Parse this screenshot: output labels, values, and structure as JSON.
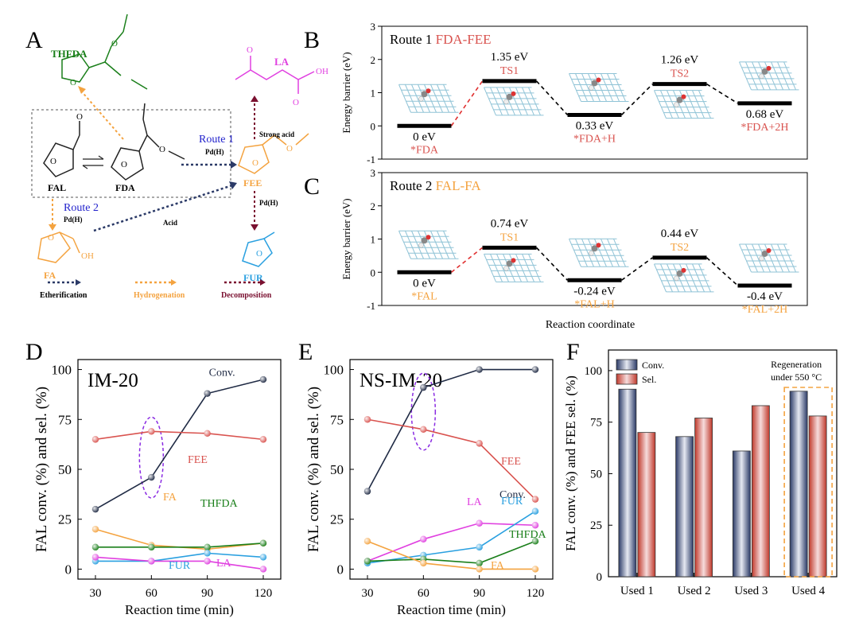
{
  "colors": {
    "dark": "#1f2a44",
    "red": "#d9534f",
    "orange": "#f4a340",
    "green": "#1a7f1a",
    "blue": "#2aa0e0",
    "magenta": "#e040e0",
    "navy": "#2b3a67",
    "maroon": "#7a1030",
    "surface": "#8fc3d6",
    "purple": "#8a2be2"
  },
  "panel_a": {
    "letter": "A",
    "labels": {
      "thfda": "THFDA",
      "la": "LA",
      "fal": "FAL",
      "fda": "FDA",
      "fee": "FEE",
      "fa": "FA",
      "fur": "FUR",
      "route1": "Route 1",
      "route2": "Route 2",
      "pd_h": "Pd(H)",
      "strong_acid": "Strong acid",
      "acid": "Acid",
      "carbonyl_o": "O",
      "ring_o": "O",
      "ether_o": "O",
      "oh": "OH",
      "acid_oh": "OH"
    },
    "legend": [
      "Etherification",
      "Hydrogenation",
      "Decomposition"
    ]
  },
  "shared": {
    "xlabel_bc": "Reaction coordinate"
  },
  "chart_data": [
    {
      "panel": "B",
      "type": "line",
      "title_prefix": "Route 1",
      "title_route": "FDA-FEE",
      "ylabel": "Energy barrier (eV)",
      "ylim": [
        -1,
        3
      ],
      "yticks": [
        "-1",
        "0",
        "1",
        "2",
        "3"
      ],
      "states": [
        {
          "label": "*FDA",
          "energy": 0,
          "energy_label": "0 eV"
        },
        {
          "label": "TS1",
          "energy": 1.35,
          "energy_label": "1.35 eV"
        },
        {
          "label": "*FDA+H",
          "energy": 0.33,
          "energy_label": "0.33 eV"
        },
        {
          "label": "TS2",
          "energy": 1.26,
          "energy_label": "1.26 eV"
        },
        {
          "label": "*FDA+2H",
          "energy": 0.68,
          "energy_label": "0.68 eV"
        }
      ]
    },
    {
      "panel": "C",
      "type": "line",
      "title_prefix": "Route 2",
      "title_route": "FAL-FA",
      "ylabel": "Energy barrier (eV)",
      "ylim": [
        -1,
        3
      ],
      "yticks": [
        "-1",
        "0",
        "1",
        "2",
        "3"
      ],
      "states": [
        {
          "label": "*FAL",
          "energy": 0,
          "energy_label": "0 eV"
        },
        {
          "label": "TS1",
          "energy": 0.74,
          "energy_label": "0.74 eV"
        },
        {
          "label": "*FAL+H",
          "energy": -0.24,
          "energy_label": "-0.24 eV"
        },
        {
          "label": "TS2",
          "energy": 0.44,
          "energy_label": "0.44 eV"
        },
        {
          "label": "*FAL+2H",
          "energy": -0.4,
          "energy_label": "-0.4 eV"
        }
      ]
    },
    {
      "panel": "D",
      "type": "line",
      "title": "IM-20",
      "xlabel": "Reaction time (min)",
      "ylabel": "FAL conv. (%) and sel. (%)",
      "x": [
        30,
        60,
        90,
        120
      ],
      "xticks": [
        "30",
        "60",
        "90",
        "120"
      ],
      "ylim": [
        -5,
        105
      ],
      "yticks": [
        "0",
        "25",
        "50",
        "75",
        "100"
      ],
      "series": [
        {
          "name": "Conv.",
          "label": "Conv.",
          "color": "#1f2a44",
          "values": [
            30,
            46,
            88,
            95
          ]
        },
        {
          "name": "FEE",
          "label": "FEE",
          "color": "#d9534f",
          "values": [
            65,
            69,
            68,
            65
          ]
        },
        {
          "name": "FA",
          "label": "FA",
          "color": "#f4a340",
          "values": [
            20,
            12,
            10,
            13
          ]
        },
        {
          "name": "THFDA",
          "label": "THFDA",
          "color": "#1a7f1a",
          "values": [
            11,
            11,
            11,
            13
          ]
        },
        {
          "name": "FUR",
          "label": "FUR",
          "color": "#2aa0e0",
          "values": [
            4,
            4,
            8,
            6
          ]
        },
        {
          "name": "LA",
          "label": "LA",
          "color": "#e040e0",
          "values": [
            6,
            4,
            4,
            0
          ]
        }
      ]
    },
    {
      "panel": "E",
      "type": "line",
      "title": "NS-IM-20",
      "xlabel": "Reaction time (min)",
      "ylabel": "FAL conv. (%) and sel. (%)",
      "x": [
        30,
        60,
        90,
        120
      ],
      "xticks": [
        "30",
        "60",
        "90",
        "120"
      ],
      "ylim": [
        -5,
        105
      ],
      "yticks": [
        "0",
        "25",
        "50",
        "75",
        "100"
      ],
      "series": [
        {
          "name": "Conv.",
          "label": "Conv.",
          "color": "#1f2a44",
          "values": [
            39,
            91,
            100,
            100
          ]
        },
        {
          "name": "FEE",
          "label": "FEE",
          "color": "#d9534f",
          "values": [
            75,
            70,
            63,
            35
          ]
        },
        {
          "name": "LA",
          "label": "LA",
          "color": "#e040e0",
          "values": [
            4,
            15,
            23,
            22
          ]
        },
        {
          "name": "FUR",
          "label": "FUR",
          "color": "#2aa0e0",
          "values": [
            3,
            7,
            11,
            29
          ]
        },
        {
          "name": "THFDA",
          "label": "THFDA",
          "color": "#1a7f1a",
          "values": [
            4,
            5,
            3,
            14
          ]
        },
        {
          "name": "FA",
          "label": "FA",
          "color": "#f4a340",
          "values": [
            14,
            3,
            0,
            0
          ]
        }
      ]
    },
    {
      "panel": "F",
      "type": "bar",
      "ylabel": "FAL conv. (%) and FEE sel. (%)",
      "categories": [
        "Used 1",
        "Used 2",
        "Used 3",
        "Used 4"
      ],
      "ylim": [
        0,
        110
      ],
      "yticks": [
        "0",
        "25",
        "50",
        "75",
        "100"
      ],
      "series": [
        {
          "name": "Conv.",
          "color": "#2b3a67",
          "values": [
            91,
            68,
            61,
            90
          ]
        },
        {
          "name": "Sel.",
          "color": "#d9534f",
          "values": [
            70,
            77,
            83,
            78
          ]
        }
      ],
      "annotation": [
        "Regeneration",
        "under 550 °C"
      ]
    }
  ]
}
